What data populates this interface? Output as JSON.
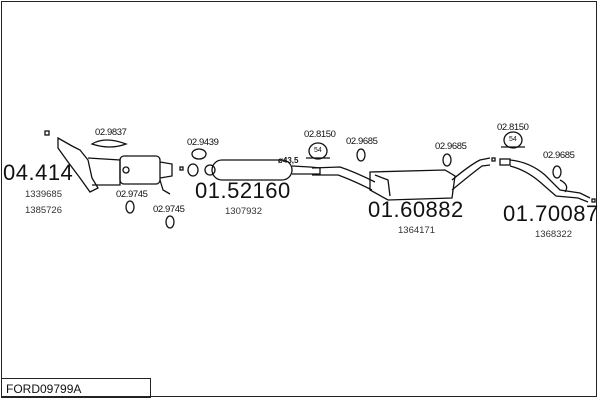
{
  "diagram_code": "FORD09799A",
  "parts": [
    {
      "number": "04.414",
      "oe": [
        "1339685",
        "1385726"
      ]
    },
    {
      "number": "01.52160",
      "oe": [
        "1307932"
      ]
    },
    {
      "number": "01.60882",
      "oe": [
        "1364171"
      ]
    },
    {
      "number": "01.70087",
      "oe": [
        "1368322"
      ]
    }
  ],
  "accessories": [
    "02.9837",
    "02.9439",
    "02.9745",
    "02.9745",
    "02.8150",
    "02.9685",
    "02.9685",
    "02.8150",
    "02.9685"
  ],
  "clamp_badges": [
    "54",
    "54"
  ],
  "pipe_diameter": "ø43,5"
}
